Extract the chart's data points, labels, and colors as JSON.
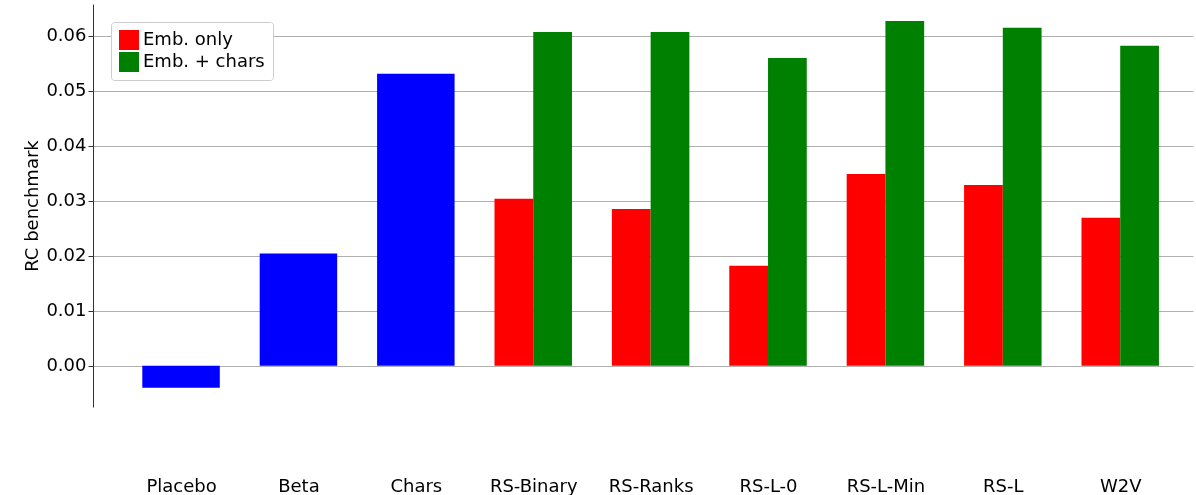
{
  "chart_data": {
    "type": "bar",
    "ylabel": "RC benchmark",
    "categories": [
      "Placebo",
      "Beta",
      "Chars",
      "RS-Binary",
      "RS-Ranks",
      "RS-L-0",
      "RS-L-Min",
      "RS-L",
      "W2V"
    ],
    "series": [
      {
        "color": "#0000ff",
        "values": [
          -0.004,
          0.0204,
          0.0531,
          null,
          null,
          null,
          null,
          null,
          null
        ]
      },
      {
        "name": "Emb. only",
        "color": "#ff0000",
        "values": [
          null,
          null,
          null,
          0.0304,
          0.0285,
          0.0182,
          0.0349,
          0.0329,
          0.0269
        ]
      },
      {
        "name": "Emb. + chars",
        "color": "#008000",
        "values": [
          null,
          null,
          null,
          0.0607,
          0.0607,
          0.056,
          0.0627,
          0.0615,
          0.0582
        ]
      }
    ],
    "ylim": [
      -0.0075,
      0.0658
    ],
    "yticks": [
      {
        "value": 0,
        "label": "0.00"
      },
      0.01,
      0.02,
      0.03,
      0.04,
      0.05,
      0.06
    ],
    "grid": "y",
    "legend": "top left"
  }
}
